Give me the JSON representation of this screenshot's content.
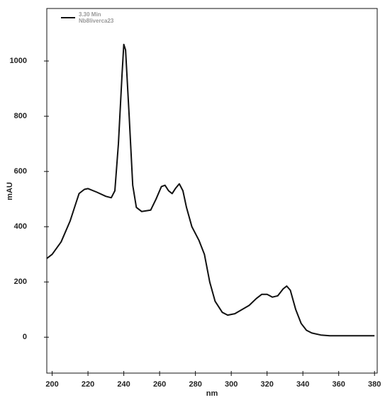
{
  "chart_data": {
    "type": "line",
    "x_label": "nm",
    "y_label": "mAU",
    "x": [
      197,
      200,
      205,
      210,
      213,
      215,
      218,
      220,
      225,
      230,
      233,
      235,
      237,
      239,
      240,
      241,
      243,
      245,
      247,
      250,
      255,
      258,
      261,
      263,
      265,
      267,
      269,
      271,
      273,
      275,
      278,
      282,
      285,
      288,
      291,
      295,
      298,
      302,
      306,
      310,
      314,
      317,
      320,
      323,
      326,
      329,
      331,
      333,
      336,
      339,
      342,
      345,
      350,
      355,
      360,
      370,
      375,
      380
    ],
    "series": [
      {
        "name": "3.30 Min",
        "subname": "Nb8liverca23",
        "color": "#111111",
        "values": [
          285,
          300,
          345,
          420,
          480,
          520,
          535,
          538,
          525,
          510,
          505,
          530,
          700,
          950,
          1060,
          1040,
          800,
          550,
          470,
          455,
          460,
          500,
          545,
          550,
          530,
          520,
          540,
          555,
          530,
          470,
          400,
          350,
          300,
          200,
          130,
          90,
          80,
          85,
          100,
          115,
          140,
          155,
          155,
          145,
          150,
          175,
          185,
          170,
          100,
          50,
          25,
          15,
          8,
          5,
          5,
          5,
          5,
          5
        ]
      }
    ],
    "xlim": [
      197,
      381.5
    ],
    "ylim": [
      -130,
      1190
    ],
    "xticks": [
      200,
      220,
      240,
      260,
      280,
      300,
      320,
      340,
      360,
      380
    ],
    "yticks": [
      0,
      200,
      400,
      600,
      800,
      1000
    ]
  }
}
